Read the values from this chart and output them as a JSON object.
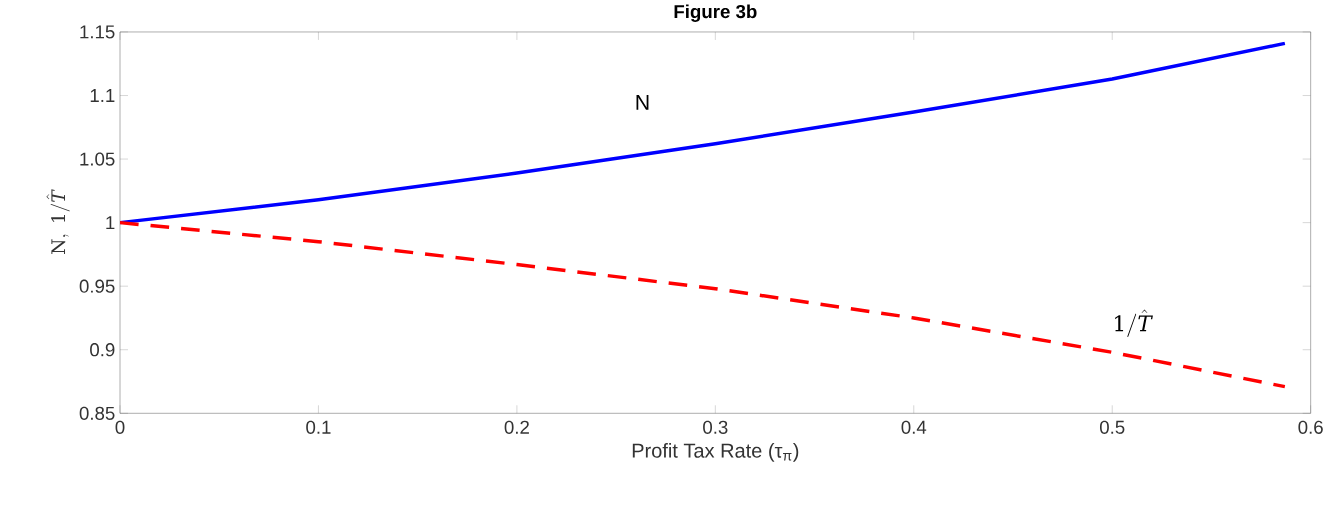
{
  "chart_data": {
    "type": "line",
    "title": "Figure 3b",
    "xlabel": "Profit Tax Rate (τ$_{π}$)",
    "ylabel": "\\mathrm{N},\\ 1/\\hat{T}",
    "x": [
      0,
      0.1,
      0.2,
      0.3,
      0.4,
      0.5,
      0.587
    ],
    "series": [
      {
        "name": "N",
        "color": "#0000ff",
        "line_style": "solid",
        "values": [
          1.0,
          1.018,
          1.039,
          1.062,
          1.087,
          1.113,
          1.141
        ]
      },
      {
        "name": "1/\\hat{T}",
        "color": "#ff0000",
        "line_style": "dashed",
        "values": [
          1.0,
          0.985,
          0.967,
          0.948,
          0.925,
          0.898,
          0.871
        ]
      }
    ],
    "xlim": [
      0,
      0.6
    ],
    "ylim": [
      0.85,
      1.15
    ],
    "xticks": [
      0,
      0.1,
      0.2,
      0.3,
      0.4,
      0.5,
      0.6
    ],
    "yticks": [
      0.85,
      0.9,
      0.95,
      1,
      1.05,
      1.1,
      1.15
    ],
    "grid": false,
    "legend": false
  }
}
